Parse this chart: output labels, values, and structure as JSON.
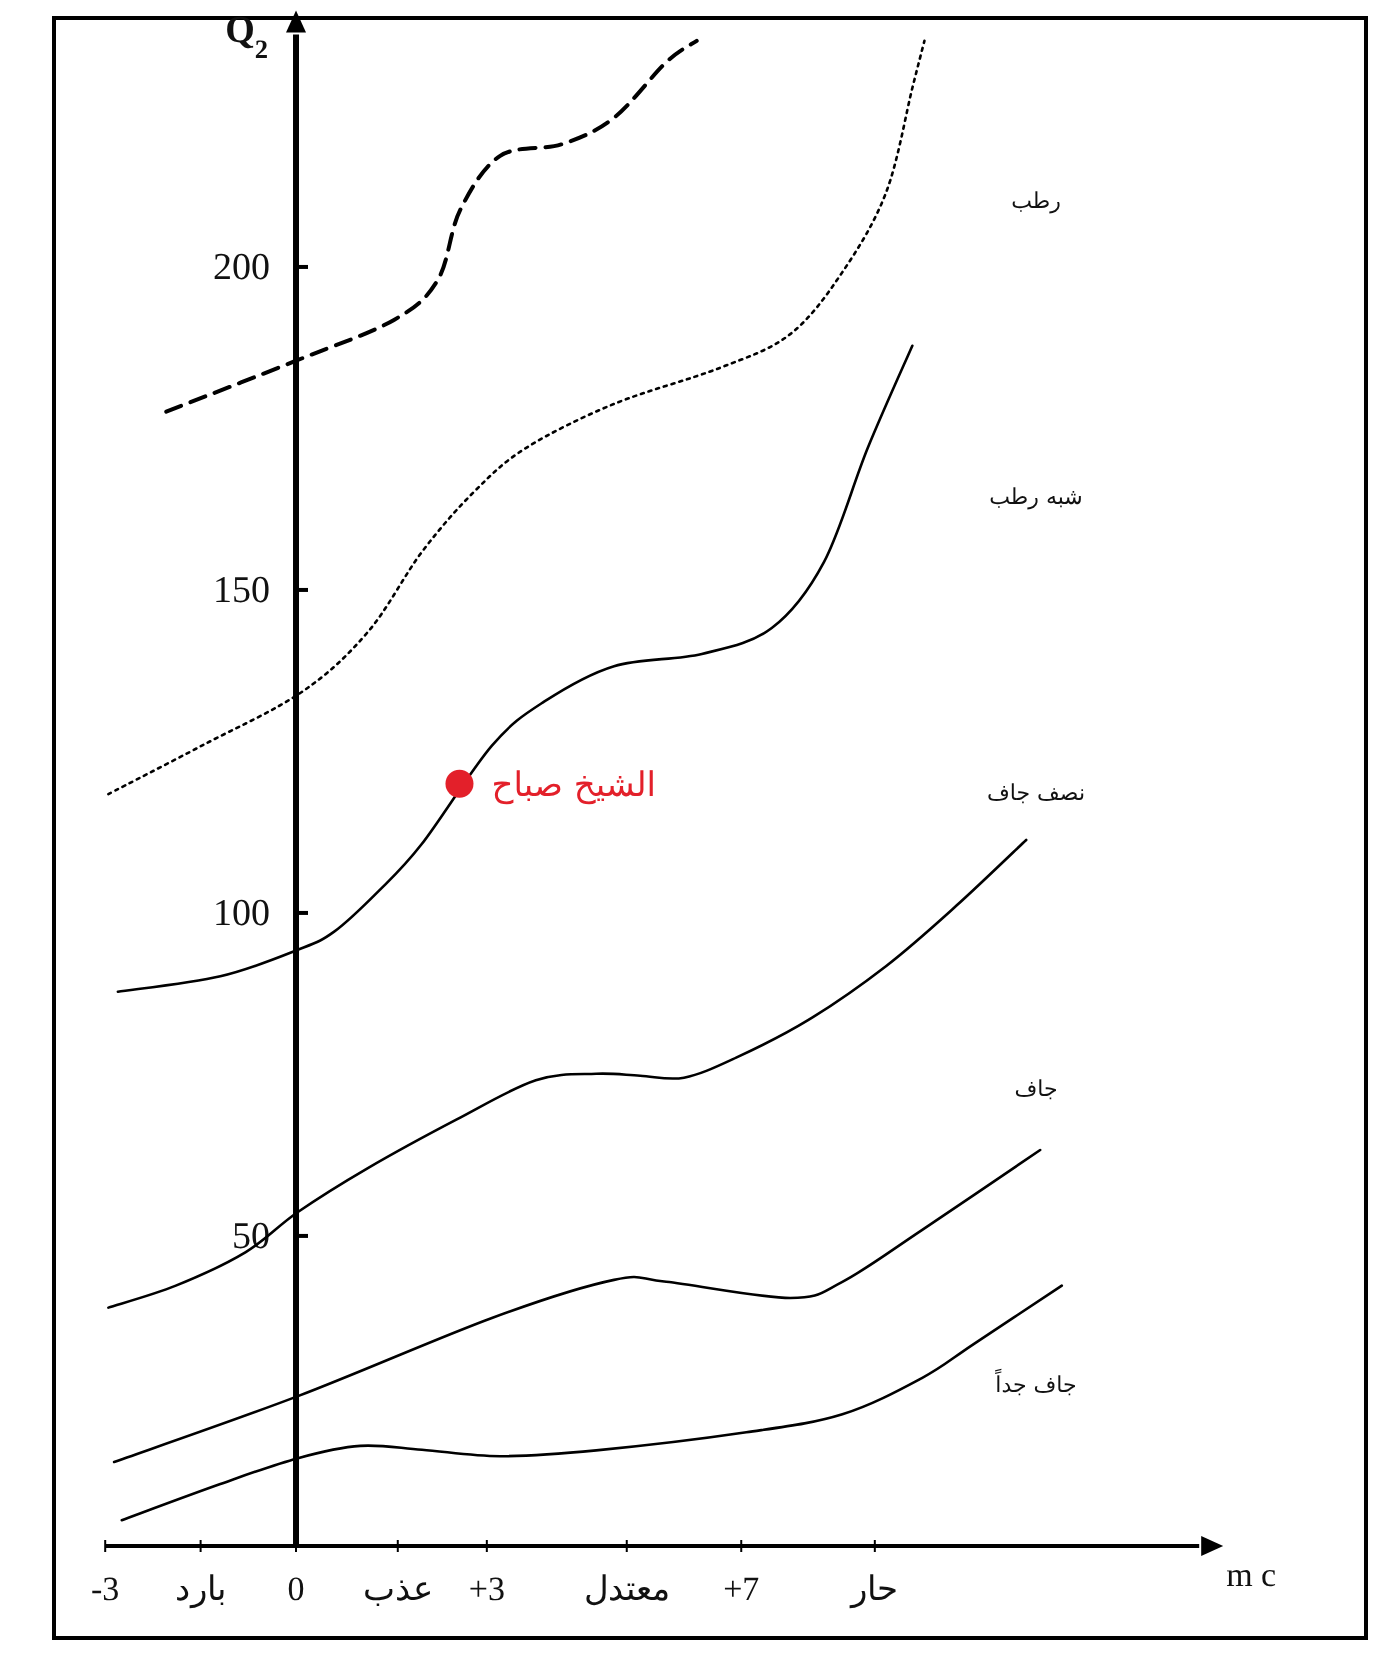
{
  "chart_data": {
    "type": "line",
    "xlabel": "m c",
    "ylabel": "Q$_{2}$",
    "xlim": [
      -3,
      14.2
    ],
    "ylim": [
      2,
      236
    ],
    "xticks": [
      -3,
      {
        "value": -1.5,
        "label": "بارد"
      },
      0,
      {
        "value": 1.6,
        "label": "عذب"
      },
      {
        "value": 3,
        "label": "+3"
      },
      {
        "value": 5.2,
        "label": "معتدل"
      },
      {
        "value": 7,
        "label": "+7"
      },
      {
        "value": 9.1,
        "label": "حار"
      }
    ],
    "yticks": [
      50,
      100,
      150,
      200
    ],
    "annotations": [
      "رطب",
      "شبه رطب",
      "نصف جاف",
      "جاف",
      "جاف جداً"
    ],
    "series": [
      {
        "color": "#000000",
        "line_style": "dashed",
        "x": [
          -2.04,
          0.03,
          1.54,
          2.23,
          2.58,
          3.21,
          4.18,
          5.0,
          5.82,
          6.3
        ],
        "values": [
          177.6,
          185.6,
          191.8,
          198.0,
          208.8,
          217.2,
          219.0,
          223.1,
          231.7,
          235
        ]
      },
      {
        "color": "#000000",
        "line_style": "dotted",
        "x": [
          -2.95,
          -1.48,
          0.09,
          1.13,
          1.98,
          2.8,
          3.62,
          5.0,
          6.67,
          7.77,
          8.59,
          9.28,
          9.69,
          9.88
        ],
        "values": [
          118.4,
          125.9,
          134.2,
          143.5,
          155.9,
          165.2,
          172.0,
          178.8,
          184.4,
          189.6,
          199.2,
          211.6,
          227.7,
          235
        ]
      },
      {
        "color": "#000000",
        "line_style": "solid",
        "x": [
          -2.8,
          -1.19,
          0.03,
          0.6,
          1.29,
          1.98,
          2.52,
          3.08,
          3.9,
          5.0,
          6.38,
          7.48,
          8.3,
          8.99,
          9.69
        ],
        "values": [
          87.8,
          90.2,
          94.3,
          97.1,
          103.3,
          110.7,
          null,
          125.9,
          132.7,
          138.2,
          140.1,
          144.1,
          154.3,
          172.0,
          187.8
        ]
      },
      {
        "color": "#000000",
        "line_style": "solid",
        "x": [
          -2.95,
          -1.89,
          -0.79,
          0.03,
          1.13,
          2.52,
          3.77,
          4.72,
          5.41,
          6.1,
          6.92,
          8.05,
          9.28,
          10.38,
          11.48
        ],
        "values": [
          38.9,
          42.3,
          47.5,
          53.7,
          60.5,
          68.0,
          74.1,
          75.1,
          74.8,
          74.5,
          77.6,
          83.4,
          91.8,
          101.1,
          111.3
        ]
      },
      {
        "color": "#000000",
        "line_style": "solid",
        "x": [
          -2.86,
          0.03,
          3.08,
          5.0,
          5.82,
          7.77,
          8.59,
          9.84,
          11.7
        ],
        "values": [
          15.0,
          25.2,
          37.3,
          43.2,
          42.9,
          40.4,
          42.9,
          50.9,
          63.3
        ]
      },
      {
        "color": "#000000",
        "line_style": "solid",
        "x": [
          -2.74,
          -1.19,
          0.03,
          1.01,
          1.98,
          3.21,
          4.72,
          7.08,
          8.59,
          9.84,
          10.66,
          12.04
        ],
        "values": [
          6.0,
          11.6,
          15.6,
          17.5,
          16.9,
          15.9,
          16.8,
          19.6,
          22.4,
          28.0,
          33.3,
          42.3
        ]
      },
      {
        "type": "scatter",
        "name": "الشيخ صباح",
        "color": "#e3202a",
        "marker": "circle",
        "x": [
          2.57
        ],
        "values": [
          120
        ]
      }
    ]
  }
}
